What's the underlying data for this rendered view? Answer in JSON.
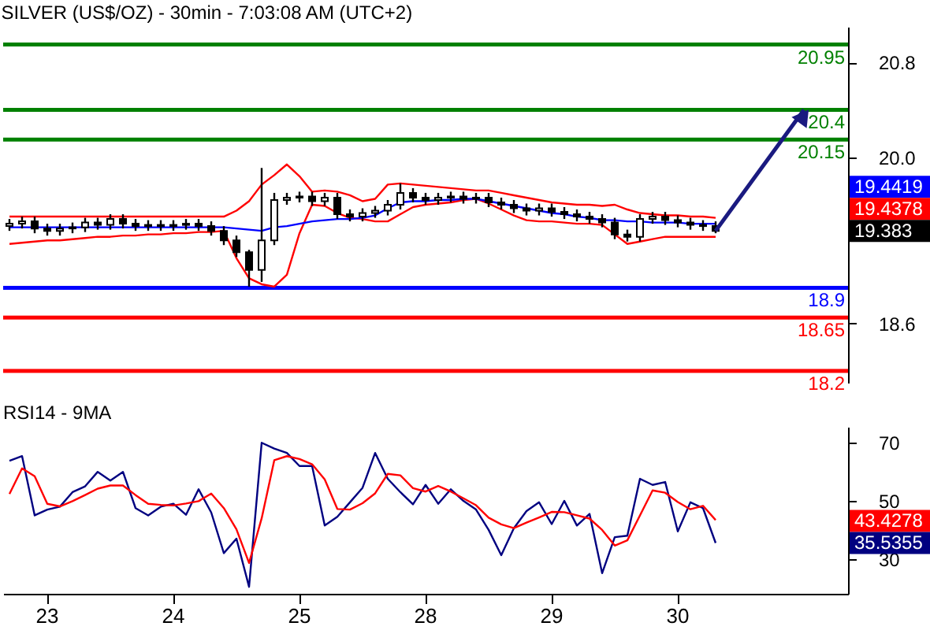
{
  "chart_data": [
    {
      "type": "candlestick",
      "title": "SILVER (US$/OZ) - 30min - 7:03:08 AM (UTC+2)",
      "color": "#000000",
      "categories": [
        null,
        null,
        null,
        "23",
        null,
        null,
        null,
        null,
        null,
        null,
        null,
        null,
        null,
        "24",
        null,
        null,
        null,
        null,
        null,
        null,
        null,
        null,
        null,
        "25",
        null,
        null,
        null,
        null,
        null,
        null,
        null,
        null,
        null,
        "28",
        null,
        null,
        null,
        null,
        null,
        null,
        null,
        null,
        null,
        "29",
        null,
        null,
        null,
        null,
        null,
        null,
        null,
        null,
        null,
        "30",
        null,
        null,
        null,
        null,
        null,
        null,
        null,
        null,
        null,
        null,
        null,
        null,
        null
      ],
      "ohlc": [
        [
          19.42,
          19.48,
          19.38,
          19.44
        ],
        [
          19.44,
          19.5,
          19.4,
          19.46
        ],
        [
          19.46,
          19.5,
          19.36,
          19.4
        ],
        [
          19.4,
          19.44,
          19.34,
          19.38
        ],
        [
          19.38,
          19.44,
          19.34,
          19.4
        ],
        [
          19.4,
          19.45,
          19.36,
          19.41
        ],
        [
          19.41,
          19.49,
          19.37,
          19.45
        ],
        [
          19.45,
          19.49,
          19.39,
          19.43
        ],
        [
          19.43,
          19.52,
          19.39,
          19.48
        ],
        [
          19.48,
          19.52,
          19.4,
          19.44
        ],
        [
          19.44,
          19.48,
          19.38,
          19.42
        ],
        [
          19.42,
          19.47,
          19.38,
          19.43
        ],
        [
          19.43,
          19.47,
          19.38,
          19.42
        ],
        [
          19.42,
          19.47,
          19.38,
          19.43
        ],
        [
          19.43,
          19.48,
          19.39,
          19.44
        ],
        [
          19.44,
          19.48,
          19.38,
          19.42
        ],
        [
          19.42,
          19.46,
          19.34,
          19.38
        ],
        [
          19.38,
          19.42,
          19.26,
          19.3
        ],
        [
          19.3,
          19.34,
          19.16,
          19.2
        ],
        [
          19.2,
          19.22,
          18.91,
          19.05
        ],
        [
          19.05,
          19.91,
          18.95,
          19.3
        ],
        [
          19.3,
          19.7,
          19.26,
          19.64
        ],
        [
          19.64,
          19.7,
          19.6,
          19.66
        ],
        [
          19.66,
          19.71,
          19.62,
          19.67
        ],
        [
          19.67,
          19.71,
          19.59,
          19.63
        ],
        [
          19.63,
          19.7,
          19.59,
          19.66
        ],
        [
          19.66,
          19.7,
          19.48,
          19.52
        ],
        [
          19.52,
          19.56,
          19.46,
          19.5
        ],
        [
          19.5,
          19.57,
          19.46,
          19.53
        ],
        [
          19.53,
          19.59,
          19.49,
          19.55
        ],
        [
          19.55,
          19.64,
          19.51,
          19.6
        ],
        [
          19.6,
          19.78,
          19.56,
          19.7
        ],
        [
          19.7,
          19.74,
          19.62,
          19.66
        ],
        [
          19.66,
          19.7,
          19.6,
          19.64
        ],
        [
          19.64,
          19.7,
          19.6,
          19.66
        ],
        [
          19.66,
          19.71,
          19.62,
          19.67
        ],
        [
          19.67,
          19.71,
          19.61,
          19.65
        ],
        [
          19.65,
          19.7,
          19.61,
          19.66
        ],
        [
          19.66,
          19.7,
          19.58,
          19.62
        ],
        [
          19.62,
          19.66,
          19.56,
          19.6
        ],
        [
          19.6,
          19.64,
          19.53,
          19.57
        ],
        [
          19.57,
          19.61,
          19.51,
          19.55
        ],
        [
          19.55,
          19.61,
          19.51,
          19.57
        ],
        [
          19.57,
          19.61,
          19.5,
          19.54
        ],
        [
          19.54,
          19.58,
          19.48,
          19.52
        ],
        [
          19.52,
          19.56,
          19.46,
          19.5
        ],
        [
          19.5,
          19.54,
          19.44,
          19.48
        ],
        [
          19.48,
          19.52,
          19.41,
          19.45
        ],
        [
          19.45,
          19.49,
          19.31,
          19.35
        ],
        [
          19.35,
          19.39,
          19.29,
          19.33
        ],
        [
          19.33,
          19.52,
          19.29,
          19.48
        ],
        [
          19.48,
          19.54,
          19.44,
          19.5
        ],
        [
          19.5,
          19.54,
          19.43,
          19.47
        ],
        [
          19.47,
          19.51,
          19.41,
          19.45
        ],
        [
          19.45,
          19.49,
          19.39,
          19.43
        ],
        [
          19.43,
          19.47,
          19.38,
          19.42
        ],
        [
          19.42,
          19.46,
          19.36,
          19.38
        ],
        null,
        null,
        null,
        null,
        null,
        null,
        null,
        null,
        null,
        null
      ],
      "series": [
        {
          "type": "line",
          "color": "#ff0000",
          "values": [
            19.5,
            19.5,
            19.5,
            19.5,
            19.5,
            19.5,
            19.5,
            19.5,
            19.5,
            19.5,
            19.5,
            19.5,
            19.5,
            19.5,
            19.5,
            19.5,
            19.5,
            19.5,
            19.55,
            19.63,
            19.77,
            19.85,
            19.94,
            19.84,
            19.71,
            19.72,
            19.71,
            19.68,
            19.63,
            19.65,
            19.77,
            19.78,
            19.77,
            19.76,
            19.75,
            19.74,
            19.73,
            19.72,
            19.72,
            19.7,
            19.68,
            19.66,
            19.64,
            19.62,
            19.61,
            19.6,
            19.6,
            19.59,
            19.6,
            19.56,
            19.53,
            19.52,
            19.51,
            19.51,
            19.5,
            19.5,
            19.49,
            null,
            null,
            null,
            null,
            null,
            null,
            null,
            null,
            null,
            null
          ]
        },
        {
          "type": "line",
          "color": "#ff0000",
          "values": [
            19.27,
            19.28,
            19.29,
            19.3,
            19.3,
            19.31,
            19.32,
            19.33,
            19.33,
            19.34,
            19.34,
            19.35,
            19.35,
            19.36,
            19.36,
            19.37,
            19.37,
            19.38,
            19.15,
            18.98,
            18.93,
            18.91,
            19.01,
            19.36,
            19.6,
            19.59,
            19.53,
            19.49,
            19.48,
            19.46,
            19.46,
            19.52,
            19.58,
            19.6,
            19.61,
            19.62,
            19.64,
            19.65,
            19.61,
            19.56,
            19.51,
            19.47,
            19.46,
            19.46,
            19.45,
            19.44,
            19.44,
            19.43,
            19.35,
            19.27,
            19.29,
            19.31,
            19.33,
            19.33,
            19.33,
            19.33,
            19.33,
            null,
            null,
            null,
            null,
            null,
            null,
            null,
            null,
            null,
            null
          ]
        },
        {
          "type": "line",
          "color": "#0000ff",
          "values": [
            19.41,
            19.41,
            19.41,
            19.41,
            19.41,
            19.41,
            19.41,
            19.41,
            19.41,
            19.41,
            19.41,
            19.41,
            19.41,
            19.41,
            19.41,
            19.41,
            19.41,
            19.41,
            19.4,
            19.39,
            19.38,
            19.41,
            19.42,
            19.44,
            19.46,
            19.47,
            19.48,
            19.48,
            19.49,
            19.51,
            19.57,
            19.62,
            19.63,
            19.63,
            19.64,
            19.64,
            19.65,
            19.65,
            19.63,
            19.61,
            19.59,
            19.57,
            19.55,
            19.53,
            19.52,
            19.5,
            19.49,
            19.47,
            19.47,
            19.46,
            19.46,
            19.45,
            19.45,
            19.45,
            19.44,
            19.44,
            19.44,
            null,
            null,
            null,
            null,
            null,
            null,
            null,
            null,
            null,
            null
          ]
        }
      ],
      "ylim": [
        18.1,
        21.1
      ],
      "yticks": [
        18.6,
        {
          "value": 20,
          "label": "20.0"
        },
        20.8
      ],
      "ref_lines": [
        {
          "axis": "y",
          "value": 20.95,
          "label": "20.95",
          "color": "#008000"
        },
        {
          "axis": "y",
          "value": 20.4,
          "label": "20.4",
          "color": "#008000"
        },
        {
          "axis": "y",
          "value": 20.15,
          "label": "20.15",
          "color": "#008000"
        },
        {
          "axis": "y",
          "value": 18.9,
          "label": "18.9",
          "color": "#0000ff"
        },
        {
          "axis": "y",
          "value": 18.65,
          "label": "18.65",
          "color": "#ff0000"
        },
        {
          "axis": "y",
          "value": 18.2,
          "label": "18.2",
          "color": "#ff0000"
        }
      ],
      "annotations": [
        "19.4419",
        "19.4378",
        "19.383"
      ],
      "tick_labels": "y"
    },
    {
      "type": "line",
      "title": "RSI14 - 9MA",
      "categories": [
        null,
        null,
        null,
        "23",
        null,
        null,
        null,
        null,
        null,
        null,
        null,
        null,
        null,
        "24",
        null,
        null,
        null,
        null,
        null,
        null,
        null,
        null,
        null,
        "25",
        null,
        null,
        null,
        null,
        null,
        null,
        null,
        null,
        null,
        "28",
        null,
        null,
        null,
        null,
        null,
        null,
        null,
        null,
        null,
        "29",
        null,
        null,
        null,
        null,
        null,
        null,
        null,
        null,
        null,
        "30",
        null,
        null,
        null,
        null,
        null,
        null,
        null,
        null,
        null,
        null,
        null,
        null,
        null
      ],
      "series": [
        {
          "color": "#000080",
          "values": [
            63.8,
            65.4,
            45.0,
            47.0,
            48.0,
            53.0,
            55.0,
            60.0,
            57.0,
            60.0,
            47.5,
            45.0,
            48.0,
            49.0,
            45.2,
            54.0,
            46.0,
            32.0,
            37.0,
            20.4,
            70.0,
            68.0,
            66.5,
            62.0,
            62.0,
            41.5,
            44.5,
            49.5,
            54.5,
            66.5,
            57.6,
            53.0,
            48.8,
            55.5,
            49.0,
            54.0,
            50.0,
            47.0,
            40.0,
            31.3,
            40.6,
            46.5,
            49.5,
            42.0,
            50.0,
            41.5,
            45.5,
            25.1,
            37.5,
            38.0,
            57.6,
            55.5,
            56.5,
            39.5,
            49.5,
            47.5,
            35.5,
            null,
            null,
            null,
            null,
            null,
            null,
            null,
            null,
            null,
            null
          ]
        },
        {
          "color": "#ff0000",
          "values": [
            52.4,
            61.2,
            58.5,
            49.0,
            48.1,
            49.9,
            52.0,
            54.2,
            55.3,
            55.3,
            52.0,
            49.0,
            48.6,
            48.4,
            49.1,
            49.9,
            52.5,
            47.5,
            40.2,
            28.6,
            44.0,
            64.0,
            65.4,
            64.4,
            62.6,
            57.4,
            47.2,
            47.0,
            49.2,
            52.6,
            59.3,
            58.8,
            54.4,
            53.2,
            55.1,
            53.2,
            50.9,
            48.5,
            44.2,
            41.9,
            40.6,
            42.5,
            44.3,
            46.2,
            46.1,
            45.0,
            43.9,
            40.0,
            34.6,
            36.4,
            45.0,
            53.6,
            52.8,
            49.6,
            47.1,
            48.3,
            43.4,
            null,
            null,
            null,
            null,
            null,
            null,
            null,
            null,
            null,
            null
          ]
        }
      ],
      "ylim": [
        18,
        75.5
      ],
      "yticks": [
        30,
        50,
        70
      ],
      "annotations": [
        "43.4278",
        "35.5355"
      ]
    }
  ]
}
